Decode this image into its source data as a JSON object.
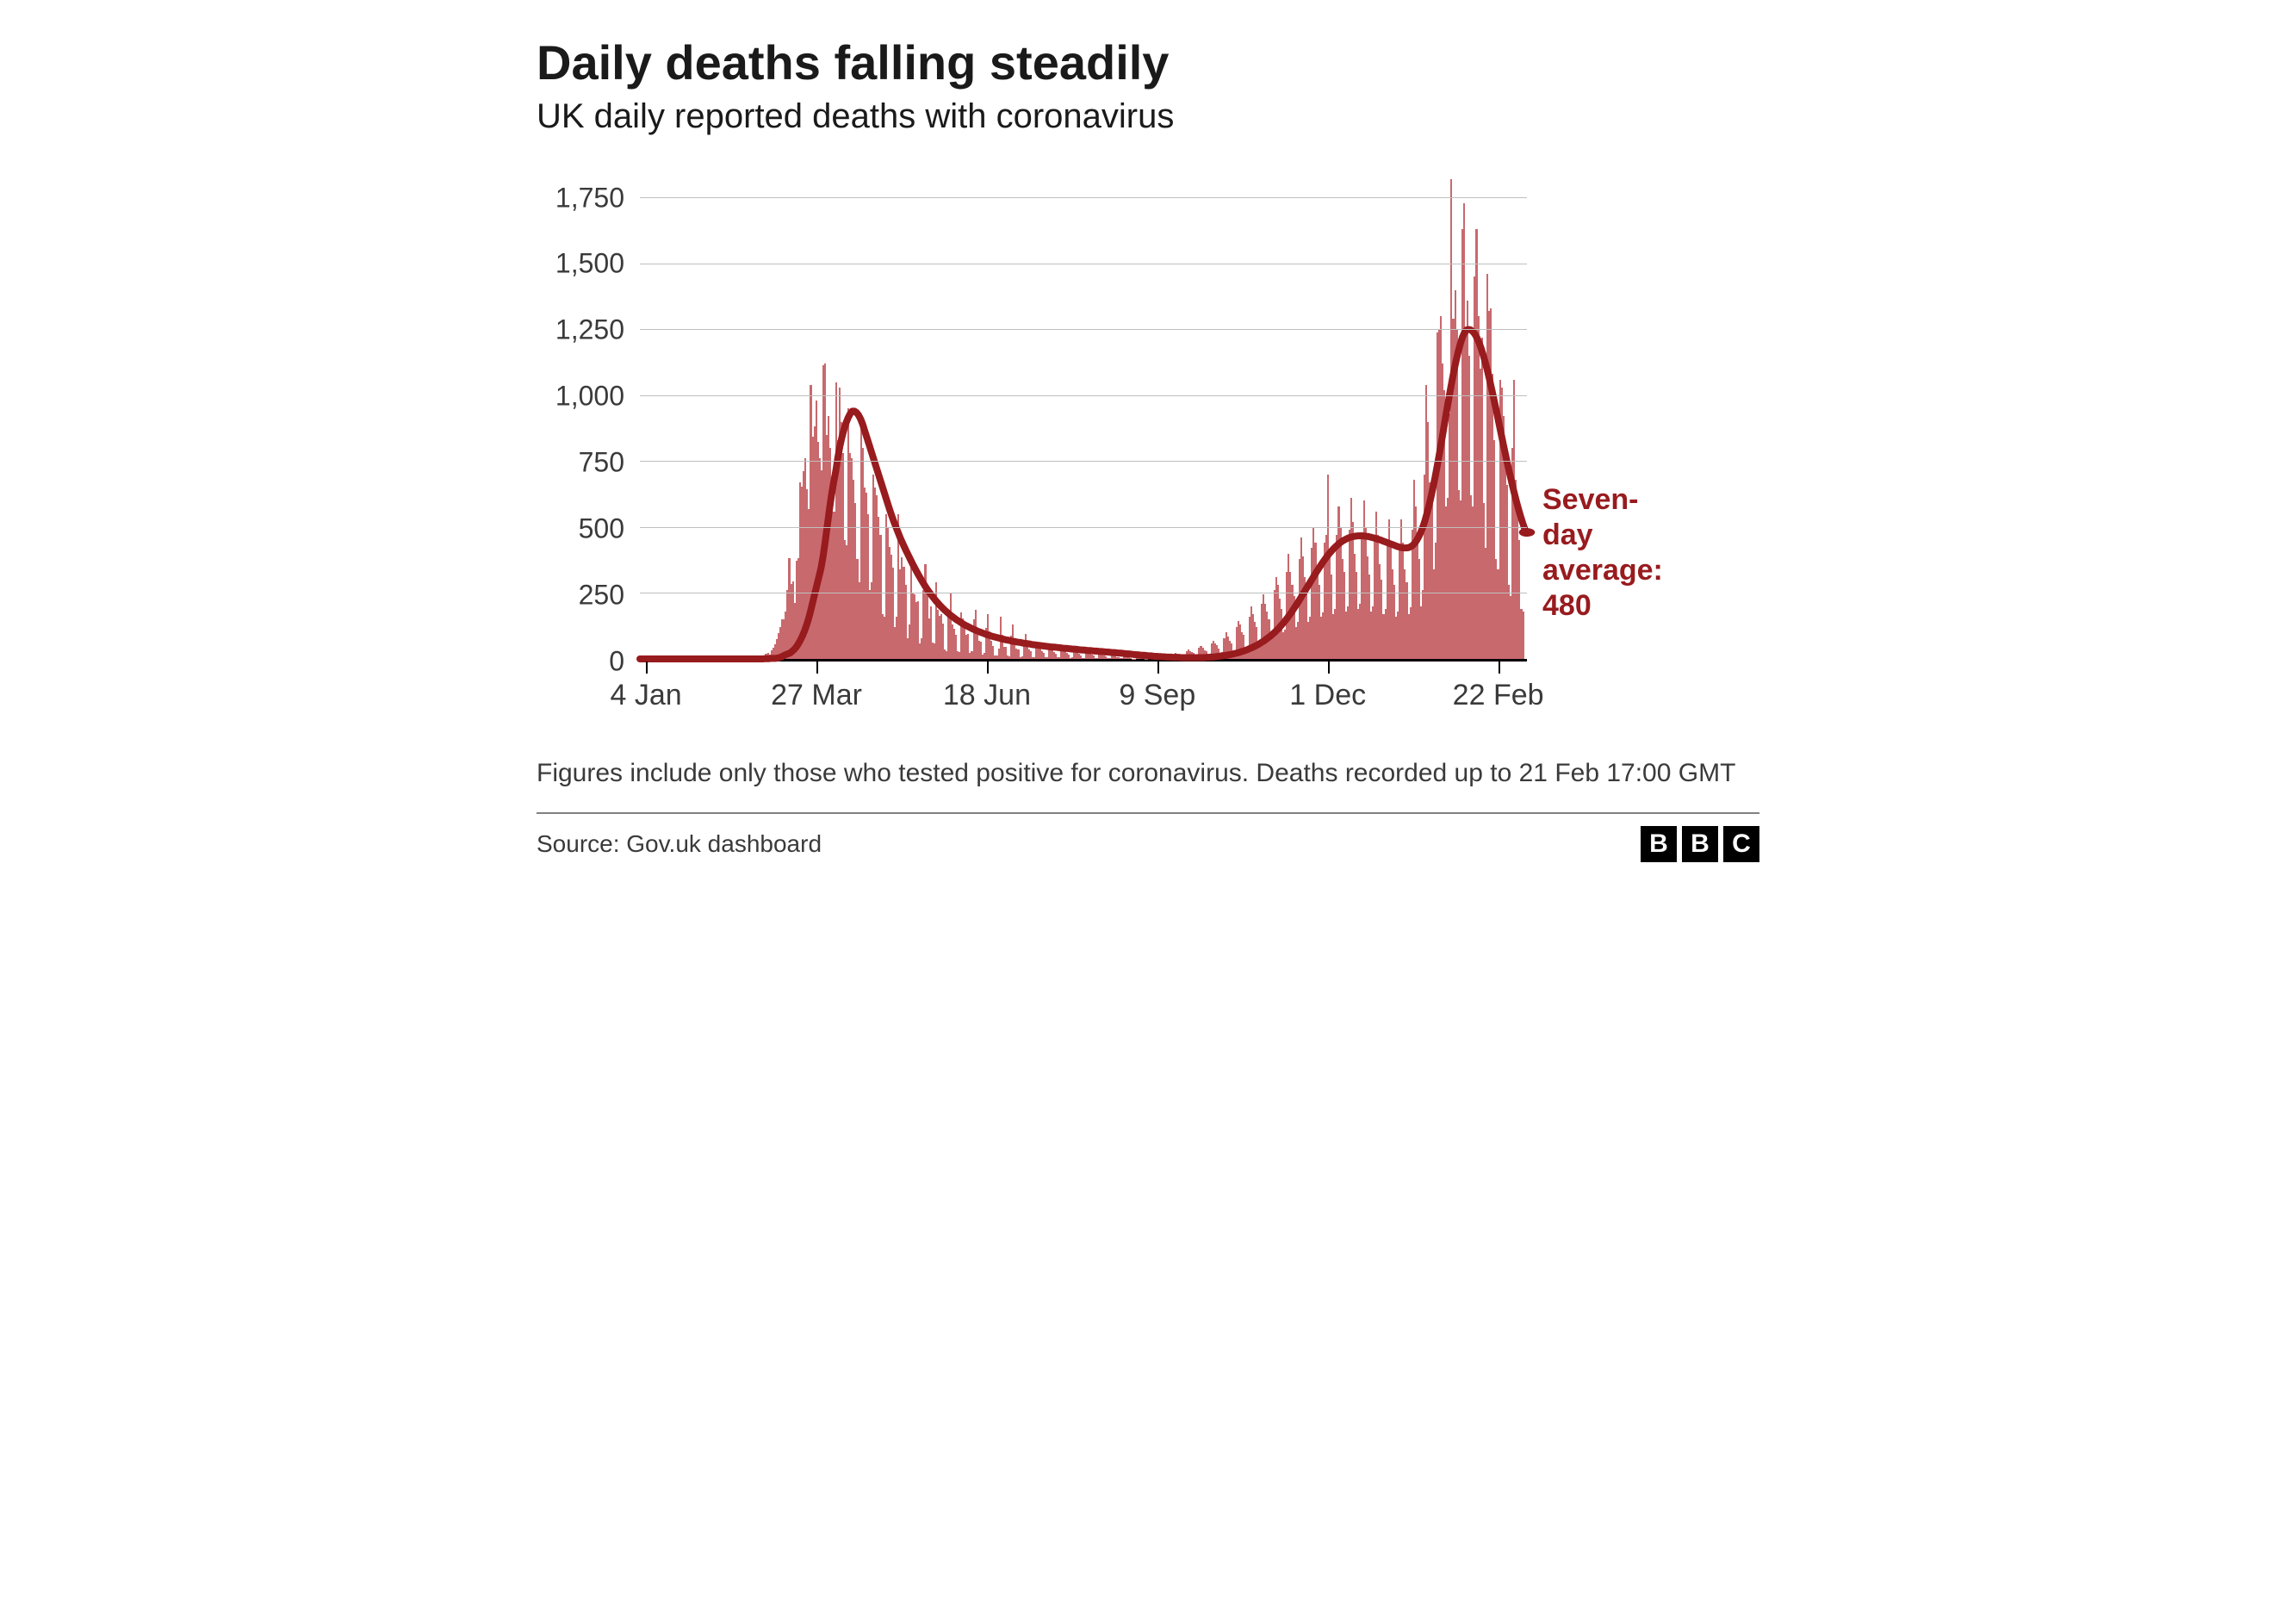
{
  "title": "Daily deaths falling steadily",
  "subtitle": "UK daily reported deaths with coronavirus",
  "footnote": "Figures include only those who tested positive for coronavirus. Deaths recorded up to 21 Feb 17:00 GMT",
  "source": "Source: Gov.uk dashboard",
  "logo_letters": [
    "B",
    "B",
    "C"
  ],
  "chart": {
    "type": "bar+line",
    "background_color": "#ffffff",
    "grid_color": "#bfbfbf",
    "axis_color": "#000000",
    "bar_color": "#c8696e",
    "line_color": "#981b1e",
    "line_width": 8,
    "label_color": "#3a3a3a",
    "label_fontsize": 32,
    "title_fontsize": 56,
    "subtitle_fontsize": 40,
    "ymin": 0,
    "ymax": 1820,
    "y_ticks": [
      0,
      250,
      500,
      750,
      1000,
      1250,
      1500,
      1750
    ],
    "y_tick_labels": [
      "0",
      "250",
      "500",
      "750",
      "1,000",
      "1,250",
      "1,500",
      "1,750"
    ],
    "x_range_days": 432,
    "x_ticks": [
      {
        "day": 3,
        "label": "4 Jan"
      },
      {
        "day": 86,
        "label": "27 Mar"
      },
      {
        "day": 169,
        "label": "18 Jun"
      },
      {
        "day": 252,
        "label": "9 Sep"
      },
      {
        "day": 335,
        "label": "1 Dec"
      },
      {
        "day": 418,
        "label": "22 Feb"
      }
    ],
    "annotation": {
      "text_lines": [
        "Seven-day",
        "average:",
        "480"
      ],
      "value": 480,
      "color": "#981b1e",
      "fontsize": 34,
      "marker_radius": 9
    },
    "bars": [
      0,
      0,
      0,
      0,
      0,
      0,
      0,
      0,
      0,
      0,
      0,
      0,
      0,
      0,
      0,
      0,
      0,
      0,
      0,
      0,
      0,
      0,
      0,
      0,
      0,
      0,
      0,
      0,
      0,
      0,
      0,
      0,
      0,
      0,
      0,
      0,
      0,
      0,
      0,
      0,
      0,
      0,
      0,
      0,
      0,
      0,
      0,
      0,
      0,
      0,
      0,
      0,
      0,
      0,
      0,
      0,
      0,
      0,
      0,
      0,
      1,
      1,
      2,
      2,
      2,
      1,
      2,
      6,
      10,
      14,
      20,
      22,
      16,
      34,
      42,
      56,
      74,
      98,
      120,
      150,
      149,
      180,
      260,
      381,
      284,
      294,
      214,
      374,
      382,
      670,
      652,
      714,
      760,
      644,
      568,
      1038,
      842,
      881,
      980,
      824,
      761,
      717,
      1115,
      1120,
      850,
      920,
      800,
      560,
      560,
      1050,
      830,
      1030,
      900,
      780,
      450,
      430,
      950,
      780,
      760,
      680,
      590,
      380,
      290,
      910,
      800,
      650,
      630,
      550,
      260,
      290,
      700,
      650,
      620,
      540,
      470,
      170,
      160,
      550,
      500,
      425,
      395,
      345,
      120,
      160,
      550,
      340,
      385,
      350,
      280,
      80,
      130,
      370,
      250,
      245,
      215,
      220,
      60,
      78,
      260,
      360,
      255,
      155,
      200,
      62,
      58,
      290,
      185,
      165,
      170,
      135,
      36,
      30,
      180,
      250,
      130,
      115,
      90,
      28,
      26,
      178,
      155,
      135,
      90,
      95,
      22,
      28,
      150,
      185,
      90,
      68,
      65,
      18,
      24,
      118,
      170,
      105,
      68,
      50,
      13,
      12,
      38,
      160,
      90,
      46,
      46,
      12,
      10,
      88,
      130,
      58,
      40,
      35,
      8,
      10,
      70,
      95,
      56,
      35,
      28,
      8,
      7,
      58,
      62,
      50,
      30,
      22,
      6,
      6,
      50,
      58,
      42,
      25,
      20,
      5,
      5,
      45,
      52,
      38,
      22,
      16,
      4,
      5,
      40,
      48,
      34,
      20,
      14,
      4,
      4,
      34,
      42,
      28,
      16,
      12,
      3,
      3,
      28,
      35,
      22,
      12,
      9,
      2,
      2,
      20,
      25,
      14,
      8,
      6,
      2,
      2,
      12,
      15,
      8,
      6,
      4,
      1,
      1,
      8,
      10,
      6,
      4,
      3,
      1,
      1,
      6,
      8,
      5,
      3,
      2,
      1,
      2,
      10,
      12,
      9,
      7,
      6,
      3,
      4,
      18,
      22,
      16,
      14,
      12,
      6,
      8,
      30,
      36,
      30,
      26,
      22,
      10,
      12,
      44,
      50,
      42,
      34,
      30,
      14,
      16,
      58,
      70,
      60,
      52,
      40,
      20,
      26,
      80,
      100,
      85,
      70,
      60,
      28,
      34,
      120,
      145,
      130,
      100,
      90,
      40,
      46,
      160,
      200,
      170,
      140,
      120,
      58,
      64,
      210,
      245,
      210,
      180,
      150,
      78,
      88,
      260,
      310,
      280,
      230,
      190,
      100,
      110,
      330,
      400,
      330,
      280,
      240,
      120,
      140,
      380,
      460,
      390,
      310,
      250,
      140,
      160,
      420,
      500,
      440,
      350,
      280,
      160,
      175,
      440,
      470,
      700,
      390,
      320,
      170,
      190,
      470,
      580,
      500,
      380,
      330,
      180,
      200,
      490,
      610,
      520,
      400,
      330,
      190,
      210,
      480,
      600,
      500,
      390,
      320,
      180,
      200,
      460,
      560,
      470,
      360,
      300,
      170,
      190,
      430,
      530,
      440,
      340,
      280,
      160,
      180,
      430,
      530,
      440,
      340,
      290,
      170,
      195,
      490,
      680,
      580,
      440,
      380,
      200,
      260,
      700,
      1040,
      900,
      670,
      620,
      340,
      440,
      1240,
      1250,
      1300,
      1120,
      1020,
      580,
      610,
      930,
      1820,
      1290,
      1400,
      1250,
      640,
      600,
      1630,
      1730,
      1240,
      1360,
      1150,
      620,
      580,
      1450,
      1630,
      1300,
      1100,
      1220,
      590,
      420,
      1460,
      1320,
      1330,
      1080,
      830,
      380,
      340,
      1060,
      1030,
      920,
      770,
      660,
      280,
      240,
      800,
      1060,
      680,
      550,
      450,
      190,
      180
    ],
    "avg_line": [
      0,
      0,
      0,
      0,
      0,
      0,
      0,
      0,
      0,
      0,
      0,
      0,
      0,
      0,
      0,
      0,
      0,
      0,
      0,
      0,
      0,
      0,
      0,
      0,
      0,
      0,
      0,
      0,
      0,
      0,
      0,
      0,
      0,
      0,
      0,
      0,
      0,
      0,
      0,
      0,
      0,
      0,
      0,
      0,
      0,
      0,
      0,
      0,
      0,
      0,
      0,
      0,
      0,
      0,
      0,
      0,
      0,
      0,
      0,
      0,
      1,
      1,
      1,
      2,
      2,
      2,
      3,
      5,
      8,
      12,
      16,
      19,
      22,
      28,
      35,
      44,
      56,
      70,
      86,
      105,
      127,
      152,
      182,
      215,
      248,
      280,
      312,
      345,
      390,
      445,
      505,
      565,
      620,
      668,
      710,
      760,
      805,
      840,
      870,
      895,
      915,
      930,
      940,
      940,
      935,
      925,
      910,
      890,
      865,
      840,
      815,
      790,
      765,
      740,
      715,
      690,
      665,
      640,
      615,
      590,
      565,
      542,
      520,
      500,
      480,
      460,
      442,
      425,
      408,
      392,
      376,
      360,
      345,
      330,
      316,
      302,
      289,
      276,
      264,
      253,
      242,
      232,
      222,
      213,
      204,
      196,
      188,
      181,
      174,
      167,
      161,
      155,
      149,
      144,
      139,
      134,
      129,
      125,
      121,
      117,
      113,
      110,
      106,
      103,
      100,
      97,
      94,
      91,
      89,
      86,
      84,
      82,
      80,
      78,
      76,
      74,
      72,
      71,
      69,
      67,
      66,
      64,
      63,
      62,
      60,
      59,
      58,
      57,
      55,
      54,
      53,
      52,
      51,
      50,
      49,
      48,
      47,
      46,
      45,
      45,
      44,
      43,
      42,
      41,
      40,
      40,
      39,
      38,
      37,
      37,
      36,
      35,
      34,
      34,
      33,
      32,
      32,
      31,
      30,
      30,
      29,
      28,
      28,
      27,
      26,
      26,
      25,
      24,
      24,
      23,
      22,
      22,
      21,
      20,
      19,
      19,
      18,
      17,
      16,
      16,
      15,
      14,
      14,
      13,
      12,
      12,
      11,
      10,
      10,
      9,
      9,
      8,
      8,
      7,
      7,
      7,
      6,
      6,
      6,
      6,
      5,
      5,
      5,
      5,
      5,
      5,
      5,
      5,
      5,
      5,
      5,
      5,
      6,
      6,
      7,
      7,
      8,
      9,
      10,
      11,
      12,
      13,
      14,
      16,
      17,
      19,
      21,
      23,
      25,
      28,
      30,
      33,
      36,
      40,
      43,
      47,
      51,
      55,
      60,
      65,
      70,
      76,
      82,
      88,
      95,
      102,
      110,
      118,
      127,
      136,
      146,
      156,
      167,
      178,
      190,
      202,
      214,
      227,
      240,
      253,
      266,
      279,
      292,
      305,
      318,
      331,
      343,
      355,
      367,
      378,
      389,
      399,
      408,
      417,
      425,
      432,
      439,
      445,
      450,
      454,
      458,
      461,
      463,
      465,
      466,
      467,
      467,
      467,
      466,
      465,
      464,
      462,
      460,
      458,
      455,
      453,
      450,
      447,
      444,
      441,
      438,
      435,
      432,
      429,
      426,
      424,
      422,
      421,
      421,
      422,
      425,
      430,
      438,
      449,
      463,
      480,
      500,
      524,
      552,
      583,
      617,
      654,
      694,
      736,
      780,
      826,
      873,
      920,
      966,
      1011,
      1054,
      1095,
      1132,
      1166,
      1195,
      1220,
      1238,
      1248,
      1250,
      1248,
      1242,
      1232,
      1218,
      1200,
      1178,
      1153,
      1125,
      1094,
      1061,
      1026,
      990,
      953,
      915,
      877,
      839,
      801,
      764,
      728,
      693,
      659,
      627,
      596,
      567,
      540,
      515,
      492,
      480
    ]
  }
}
